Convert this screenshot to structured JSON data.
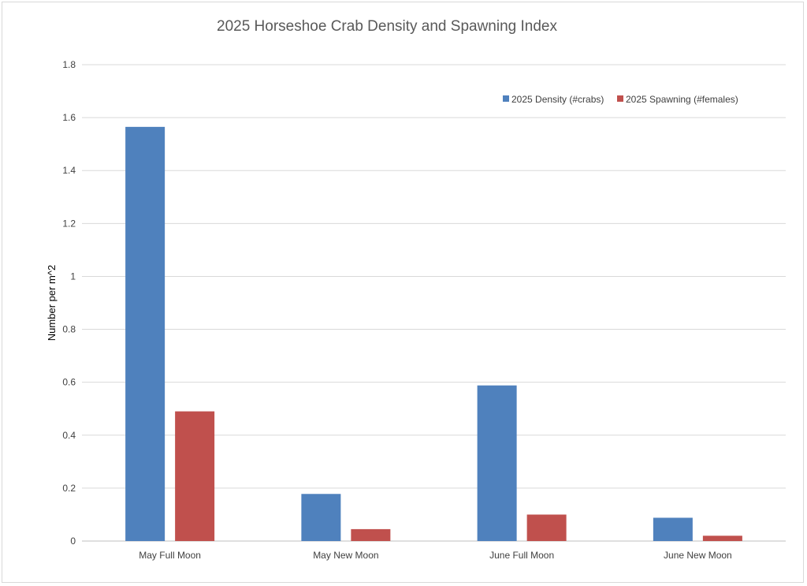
{
  "chart_data": {
    "type": "bar",
    "title": "2025 Horseshoe Crab Density and Spawning Index",
    "xlabel": "",
    "ylabel": "Number per m^2",
    "ylim": [
      0,
      1.8
    ],
    "yticks": [
      "0",
      "0.2",
      "0.4",
      "0.6",
      "0.8",
      "1",
      "1.2",
      "1.4",
      "1.6",
      "1.8"
    ],
    "ytick_values": [
      0,
      0.2,
      0.4,
      0.6,
      0.8,
      1.0,
      1.2,
      1.4,
      1.6,
      1.8
    ],
    "grid": true,
    "legend_position": "top-right",
    "categories": [
      "May Full Moon",
      "May New Moon",
      "June Full Moon",
      "June New Moon"
    ],
    "series": [
      {
        "name": "2025 Density (#crabs)",
        "color": "#4f81bd",
        "values": [
          1.565,
          0.178,
          0.588,
          0.088
        ]
      },
      {
        "name": "2025 Spawning (#females)",
        "color": "#c0504d",
        "values": [
          0.49,
          0.045,
          0.1,
          0.02
        ]
      }
    ]
  }
}
